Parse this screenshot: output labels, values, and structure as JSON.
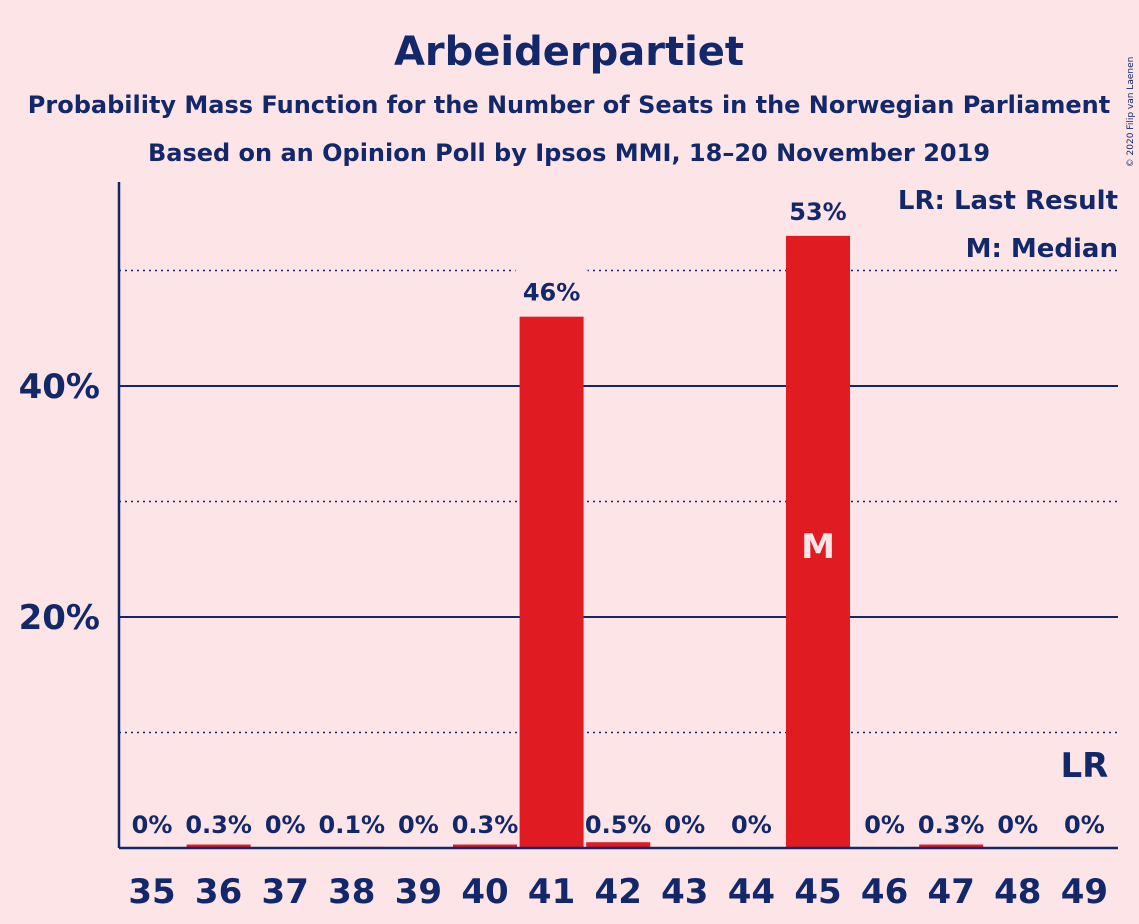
{
  "chart_data": {
    "type": "bar",
    "title": "Arbeiderpartiet",
    "subtitle_1": "Probability Mass Function for the Number of Seats in the Norwegian Parliament",
    "subtitle_2": "Based on an Opinion Poll by Ipsos MMI, 18–20 November 2019",
    "copyright": "© 2020 Filip van Laenen",
    "categories": [
      "35",
      "36",
      "37",
      "38",
      "39",
      "40",
      "41",
      "42",
      "43",
      "44",
      "45",
      "46",
      "47",
      "48",
      "49"
    ],
    "values": [
      0,
      0.3,
      0,
      0.1,
      0,
      0.3,
      46,
      0.5,
      0,
      0,
      53,
      0,
      0.3,
      0,
      0
    ],
    "data_labels": [
      "0%",
      "0.3%",
      "0%",
      "0.1%",
      "0%",
      "0.3%",
      "46%",
      "0.5%",
      "0%",
      "0%",
      "53%",
      "0%",
      "0.3%",
      "0%",
      "0%"
    ],
    "ylim": [
      0,
      57
    ],
    "yticks": [
      20,
      40
    ],
    "ytick_labels": [
      "20%",
      "40%"
    ],
    "minor_gridlines": [
      10,
      30,
      50
    ],
    "bar_color": "#e01b22",
    "text_color": "#12286b",
    "background_color": "#fde4e6",
    "median_seat": "45",
    "median_marker": "M",
    "last_result_seat": "49",
    "last_result_marker": "LR",
    "legend": {
      "position": "top-right",
      "items": [
        "LR: Last Result",
        "M: Median"
      ]
    }
  }
}
